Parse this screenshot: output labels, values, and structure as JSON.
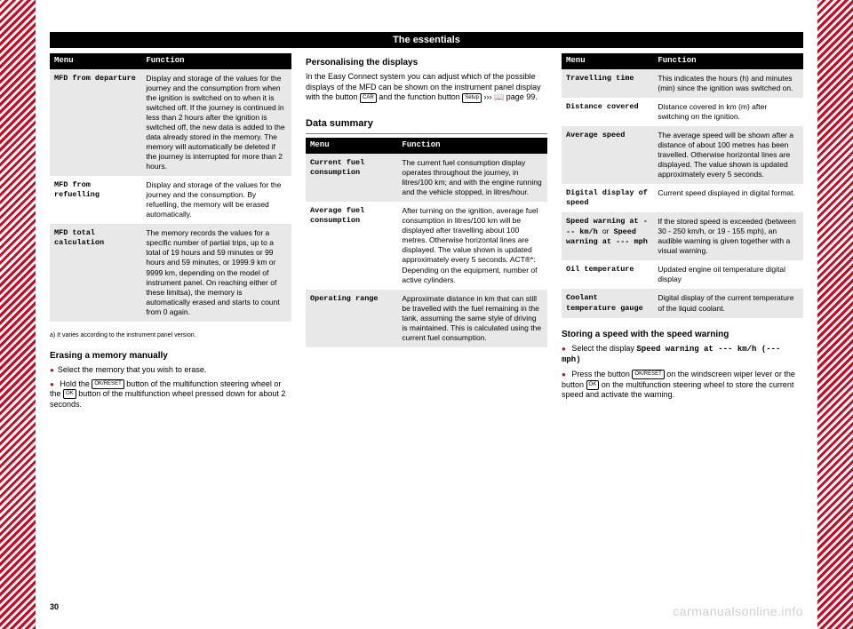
{
  "header": {
    "title": "The essentials"
  },
  "page_number": "30",
  "watermark": "carmanualsonline.info",
  "col1": {
    "table1": {
      "head_menu": "Menu",
      "head_func": "Function",
      "rows": [
        {
          "menu": "MFD from departure",
          "func": "Display and storage of the values for the journey and the consumption from when the ignition is switched on to when it is switched off. If the journey is continued in less than 2 hours after the ignition is switched off, the new data is added to the data already stored in the memory. The memory will automatically be deleted if the journey is interrupted for more than 2 hours.",
          "shade": true
        },
        {
          "menu": "MFD from refuelling",
          "func": "Display and storage of the values for the journey and the consumption. By refuelling, the memory will be erased automatically.",
          "shade": false
        },
        {
          "menu": "MFD total calculation",
          "func": "The memory records the values for a specific number of partial trips, up to a total of 19 hours and 59 minutes or 99 hours and 59 minutes, or 1999.9 km or 9999 km, depending on the model of instrument panel. On reaching either of these limitsa), the memory is automatically erased and starts to count from 0 again.",
          "shade": true
        }
      ]
    },
    "footnote_a": "a) It varies according to the instrument panel version.",
    "erase_head": "Erasing a memory manually",
    "erase_b1": "Select the memory that you wish to erase.",
    "erase_b2_a": "Hold the ",
    "erase_b2_btn1": "OK/RESET",
    "erase_b2_b": " button of the multifunction steering wheel or the ",
    "erase_b2_btn2": "OK",
    "erase_b2_c": " button of the multifunction wheel pressed down for about 2 seconds."
  },
  "col2": {
    "pers_head": "Personalising the displays",
    "pers_text_a": "In the Easy Connect system you can adjust which of the possible displays of the MFD can be shown on the instrument panel display with the button ",
    "pers_btn1": "CAR",
    "pers_text_b": " and the function button ",
    "pers_btn2": "Setup",
    "pers_text_c": " ››› ",
    "pers_link": "page 99",
    "pers_text_d": ".",
    "section_title": "Data summary",
    "table2": {
      "head_menu": "Menu",
      "head_func": "Function",
      "rows": [
        {
          "menu": "Current fuel consumption",
          "func": "The current fuel consumption display operates throughout the journey, in litres/100 km; and with the engine running and the vehicle stopped, in litres/hour.",
          "shade": true
        },
        {
          "menu": "Average fuel consumption",
          "func": "After turning on the ignition, average fuel consumption in litres/100 km will be displayed after travelling about 100 metres. Otherwise horizontal lines are displayed. The value shown is updated approximately every 5 seconds. ACT®*: Depending on the equipment, number of active cylinders.",
          "shade": false
        },
        {
          "menu": "Operating range",
          "func": "Approximate distance in km that can still be travelled with the fuel remaining in the tank, assuming the same style of driving is maintained. This is calculated using the current fuel consumption.",
          "shade": true
        }
      ]
    }
  },
  "col3": {
    "table3": {
      "head_menu": "Menu",
      "head_func": "Function",
      "rows": [
        {
          "menu": "Travelling time",
          "func": "This indicates the hours (h) and minutes (min) since the ignition was switched on.",
          "shade": true
        },
        {
          "menu": "Distance covered",
          "func": "Distance covered in km (m) after switching on the ignition.",
          "shade": false
        },
        {
          "menu": "Average speed",
          "func": "The average speed will be shown after a distance of about 100 metres has been travelled. Otherwise horizontal lines are displayed. The value shown is updated approximately every 5 seconds.",
          "shade": true
        },
        {
          "menu": "Digital display of speed",
          "func": "Current speed displayed in digital format.",
          "shade": false
        },
        {
          "menu_html": "Speed warning at --- km/h <span style='font-family:Arial;font-weight:normal'>or</span> Speed warning at --- mph",
          "func": "If the stored speed is exceeded (between 30 - 250 km/h, or 19 - 155 mph), an audible warning is given together with a visual warning.",
          "shade": true
        },
        {
          "menu": "Oil temperature",
          "func": "Updated engine oil temperature digital display",
          "shade": false
        },
        {
          "menu": "Coolant temperature gauge",
          "func": "Digital display of the current temperature of the liquid coolant.",
          "shade": true
        }
      ]
    },
    "store_head": "Storing a speed with the speed warning",
    "store_b1_a": "Select the display ",
    "store_b1_mono": "Speed warning at --- km/h (--- mph)",
    "store_b2_a": "Press the button ",
    "store_b2_btn1": "OK/RESET",
    "store_b2_b": " on the windscreen wiper lever or the button ",
    "store_b2_btn2": "OK",
    "store_b2_c": " on the multifunction steering wheel to store the current speed and activate the warning."
  }
}
